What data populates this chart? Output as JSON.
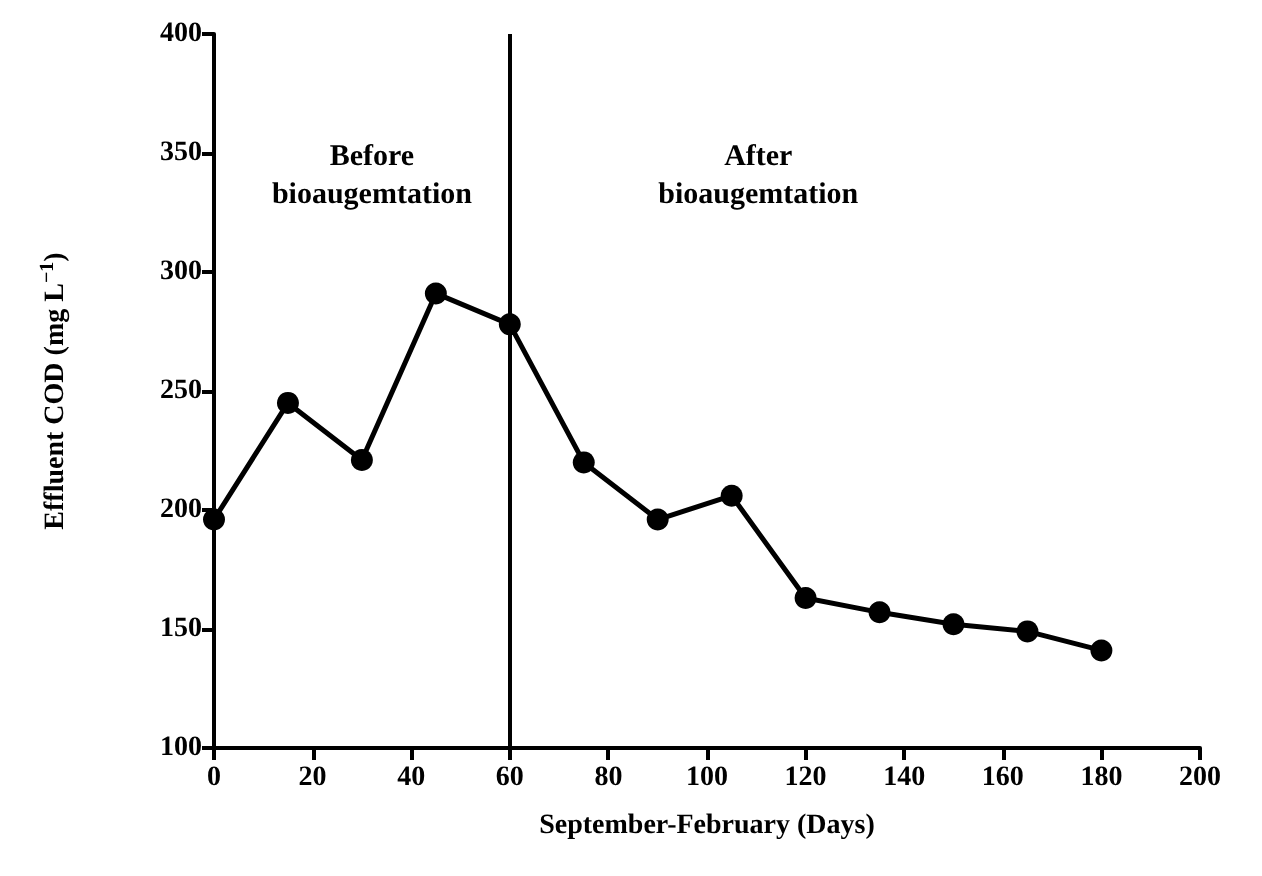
{
  "chart_data": {
    "type": "line",
    "xlabel": "September-February (Days)",
    "ylabel": "Effluent COD (mg L$^{−1}$)",
    "x": [
      0,
      15,
      30,
      45,
      60,
      75,
      90,
      105,
      120,
      135,
      150,
      165,
      180
    ],
    "series": [
      {
        "color": "#000000",
        "values": [
          196,
          245,
          221,
          291,
          278,
          220,
          196,
          206,
          163,
          157,
          152,
          149,
          141
        ]
      }
    ],
    "xlim": [
      0,
      200
    ],
    "xticks": [
      0,
      20,
      40,
      60,
      80,
      100,
      120,
      140,
      160,
      180,
      200
    ],
    "ylim": [
      100,
      400
    ],
    "yticks": [
      100,
      150,
      200,
      250,
      300,
      350,
      400
    ],
    "ref_lines": [
      {
        "axis": "x",
        "value": 60,
        "color": "#000000"
      }
    ],
    "annotations": [
      "Before\nbioaugemtation",
      "After\nbioaugemtation"
    ],
    "grid": false,
    "marker": "circle",
    "line_style": "solid"
  }
}
